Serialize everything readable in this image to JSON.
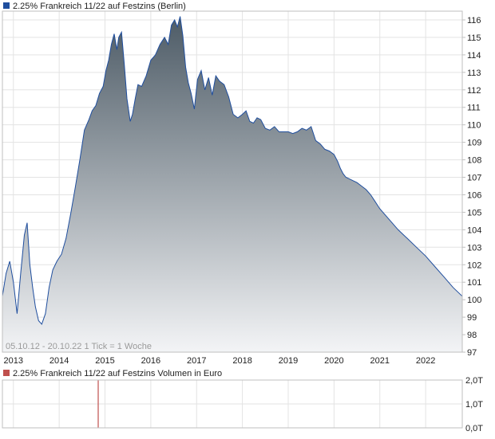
{
  "colors": {
    "price_line": "#1f4e9e",
    "price_fill_top": "#4d5b66",
    "price_fill_bottom": "#f3f4f6",
    "grid": "#e3e3e3",
    "frame": "#bfbfbf",
    "price_legend_swatch": "#1f4e9e",
    "volume_legend_swatch": "#c0504d",
    "volume_bar": "#c0504d",
    "info_text": "#9a9a9a"
  },
  "icons": {
    "price_legend": "blue-square-swatch",
    "volume_legend": "red-square-swatch"
  },
  "chart_data": [
    {
      "type": "area",
      "legend": "2.25% Frankreich 11/22 auf Festzins (Berlin)",
      "info": "05.10.12 - 20.10.22   1 Tick = 1 Woche",
      "x_tick_labels": [
        "2013",
        "2014",
        "2015",
        "2016",
        "2017",
        "2018",
        "2019",
        "2020",
        "2021",
        "2022"
      ],
      "y_tick_labels": [
        "97",
        "98",
        "99",
        "100",
        "101",
        "102",
        "103",
        "104",
        "105",
        "106",
        "107",
        "108",
        "109",
        "110",
        "111",
        "112",
        "113",
        "114",
        "115",
        "116"
      ],
      "ylim": [
        97,
        116.5
      ],
      "xlim": [
        2012.76,
        2022.8
      ],
      "grid": true,
      "y_axis_side": "right",
      "series": [
        {
          "x": [
            2012.76,
            2012.84,
            2012.92,
            2013.0,
            2013.08,
            2013.16,
            2013.24,
            2013.3,
            2013.36,
            2013.42,
            2013.48,
            2013.55,
            2013.62,
            2013.7,
            2013.78,
            2013.86,
            2013.95,
            2014.05,
            2014.15,
            2014.25,
            2014.35,
            2014.45,
            2014.55,
            2014.65,
            2014.72,
            2014.8,
            2014.88,
            2014.96,
            2015.02,
            2015.08,
            2015.14,
            2015.2,
            2015.26,
            2015.3,
            2015.36,
            2015.42,
            2015.48,
            2015.55,
            2015.6,
            2015.66,
            2015.72,
            2015.8,
            2015.9,
            2016.0,
            2016.1,
            2016.2,
            2016.3,
            2016.38,
            2016.45,
            2016.52,
            2016.58,
            2016.64,
            2016.7,
            2016.76,
            2016.82,
            2016.88,
            2016.95,
            2017.02,
            2017.1,
            2017.18,
            2017.26,
            2017.34,
            2017.42,
            2017.5,
            2017.6,
            2017.7,
            2017.8,
            2017.9,
            2018.0,
            2018.08,
            2018.16,
            2018.24,
            2018.32,
            2018.4,
            2018.5,
            2018.6,
            2018.7,
            2018.8,
            2018.9,
            2019.0,
            2019.1,
            2019.2,
            2019.3,
            2019.4,
            2019.5,
            2019.6,
            2019.7,
            2019.8,
            2019.9,
            2020.0,
            2020.08,
            2020.14,
            2020.2,
            2020.26,
            2020.34,
            2020.42,
            2020.5,
            2020.6,
            2020.7,
            2020.8,
            2020.9,
            2021.0,
            2021.2,
            2021.4,
            2021.6,
            2021.8,
            2022.0,
            2022.2,
            2022.4,
            2022.6,
            2022.8
          ],
          "y": [
            100.2,
            101.5,
            102.2,
            101.0,
            99.2,
            101.5,
            103.7,
            104.4,
            102.0,
            100.7,
            99.6,
            98.8,
            98.6,
            99.2,
            100.7,
            101.7,
            102.2,
            102.6,
            103.5,
            104.9,
            106.4,
            108.0,
            109.7,
            110.3,
            110.8,
            111.1,
            111.8,
            112.2,
            113.1,
            113.7,
            114.6,
            115.2,
            114.3,
            115.0,
            115.3,
            113.5,
            111.5,
            110.2,
            110.6,
            111.5,
            112.3,
            112.2,
            112.8,
            113.7,
            114.0,
            114.6,
            115.0,
            114.6,
            115.7,
            116.0,
            115.6,
            116.2,
            115.1,
            113.3,
            112.4,
            111.8,
            110.9,
            112.6,
            113.1,
            112.0,
            112.7,
            111.7,
            112.8,
            112.5,
            112.3,
            111.6,
            110.6,
            110.4,
            110.6,
            110.8,
            110.2,
            110.1,
            110.4,
            110.3,
            109.8,
            109.7,
            109.9,
            109.6,
            109.6,
            109.6,
            109.5,
            109.6,
            109.8,
            109.7,
            109.9,
            109.1,
            108.9,
            108.6,
            108.5,
            108.3,
            107.9,
            107.5,
            107.2,
            107.0,
            106.9,
            106.8,
            106.7,
            106.5,
            106.3,
            106.0,
            105.6,
            105.2,
            104.6,
            104.0,
            103.5,
            103.0,
            102.5,
            101.9,
            101.3,
            100.7,
            100.2
          ]
        }
      ]
    },
    {
      "type": "bar",
      "legend": "2.25% Frankreich 11/22 auf Festzins Volumen in Euro",
      "y_tick_labels": [
        "2,0T",
        "1,0T",
        "0,0T"
      ],
      "ylim": [
        0,
        2.0
      ],
      "grid": true,
      "series": [
        {
          "x": [
            2014.85
          ],
          "values": [
            2.0
          ]
        }
      ]
    }
  ]
}
